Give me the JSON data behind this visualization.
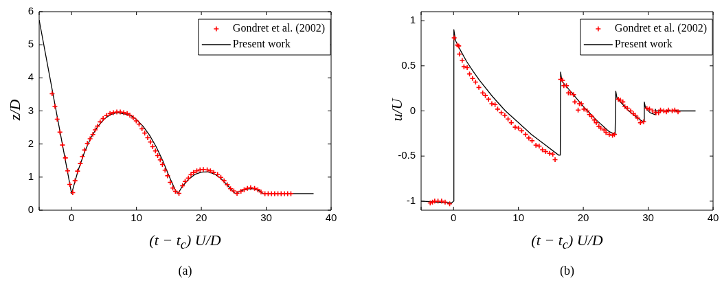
{
  "chart_data": [
    {
      "type": "line",
      "xlabel": "(t − t$_{c}$) U/D",
      "ylabel": "z/D",
      "annotations": [
        "(a)"
      ],
      "xlim": [
        -5,
        40
      ],
      "ylim": [
        0,
        6
      ],
      "xticks": [
        {
          "value": -5,
          "label": null
        },
        0,
        10,
        20,
        30,
        40
      ],
      "yticks": [
        0,
        1,
        2,
        3,
        4,
        5,
        6
      ],
      "grid": false,
      "legend": "top right",
      "series": [
        {
          "name": "Gondret et al. (2002)",
          "type": "scatter",
          "marker": "cross",
          "color": "#ff0000",
          "x": [
            -3.0,
            -2.57,
            -2.22,
            -1.8,
            -1.41,
            -0.95,
            -0.6,
            -0.28,
            0.18,
            0.53,
            0.92,
            1.34,
            1.65,
            2.0,
            2.43,
            2.85,
            3.27,
            3.63,
            3.98,
            4.4,
            4.86,
            5.39,
            5.92,
            6.44,
            6.97,
            7.5,
            8.03,
            8.56,
            8.98,
            9.5,
            9.96,
            10.4,
            10.85,
            11.27,
            11.73,
            12.15,
            12.5,
            12.92,
            13.27,
            13.66,
            14.0,
            14.4,
            14.8,
            15.2,
            15.6,
            16.0,
            16.55,
            17.1,
            17.5,
            18.0,
            18.4,
            18.8,
            19.3,
            19.8,
            20.3,
            20.9,
            21.4,
            21.9,
            22.5,
            23.0,
            23.5,
            24.0,
            24.5,
            25.0,
            25.5,
            26.1,
            26.6,
            27.1,
            27.6,
            28.2,
            28.7,
            29.2,
            29.8,
            30.3,
            30.8,
            31.3,
            31.8,
            32.3,
            32.8,
            33.3,
            33.8
          ],
          "values": [
            3.52,
            3.14,
            2.75,
            2.36,
            1.97,
            1.58,
            1.19,
            0.78,
            0.53,
            0.89,
            1.18,
            1.41,
            1.62,
            1.82,
            2.02,
            2.16,
            2.29,
            2.43,
            2.54,
            2.67,
            2.77,
            2.86,
            2.92,
            2.95,
            2.97,
            2.97,
            2.95,
            2.92,
            2.87,
            2.79,
            2.7,
            2.6,
            2.46,
            2.33,
            2.19,
            2.06,
            1.92,
            1.79,
            1.65,
            1.52,
            1.38,
            1.21,
            1.04,
            0.84,
            0.67,
            0.57,
            0.51,
            0.74,
            0.87,
            0.97,
            1.08,
            1.14,
            1.19,
            1.22,
            1.23,
            1.22,
            1.19,
            1.14,
            1.08,
            0.99,
            0.89,
            0.77,
            0.65,
            0.58,
            0.51,
            0.57,
            0.62,
            0.66,
            0.68,
            0.66,
            0.62,
            0.55,
            0.5,
            0.5,
            0.5,
            0.5,
            0.5,
            0.5,
            0.5,
            0.5,
            0.5
          ]
        },
        {
          "name": "Present work",
          "type": "line",
          "marker": "none",
          "color": "#000000",
          "x": [
            -5,
            0,
            0.5,
            1,
            2,
            3,
            4,
            5,
            6,
            7,
            9,
            10,
            11,
            12,
            13,
            14,
            15,
            16,
            16.4,
            17,
            18,
            19,
            20,
            21,
            22,
            23,
            24,
            25,
            25.3,
            26,
            27,
            28,
            29,
            29.5,
            37.3
          ],
          "values": [
            5.75,
            0.5,
            0.85,
            1.2,
            1.76,
            2.2,
            2.52,
            2.75,
            2.89,
            2.95,
            2.88,
            2.74,
            2.54,
            2.27,
            1.93,
            1.52,
            1.04,
            0.6,
            0.5,
            0.7,
            0.93,
            1.08,
            1.15,
            1.16,
            1.1,
            0.96,
            0.76,
            0.54,
            0.5,
            0.58,
            0.64,
            0.65,
            0.58,
            0.5,
            0.5
          ]
        }
      ]
    },
    {
      "type": "line",
      "xlabel": "(t − t$_{c}$) U/D",
      "ylabel": "u/U",
      "annotations": [
        "(b)"
      ],
      "xlim": [
        -5,
        40
      ],
      "ylim": [
        -1.1,
        1.1
      ],
      "xticks": [
        {
          "value": -5,
          "label": null
        },
        0,
        10,
        20,
        30,
        40
      ],
      "yticks": [
        -1,
        -0.5,
        0,
        0.5,
        1
      ],
      "grid": false,
      "legend": "top right",
      "series": [
        {
          "name": "Gondret et al. (2002)",
          "type": "scatter",
          "marker": "cross",
          "color": "#ff0000",
          "x": [
            -3.6,
            -3.25,
            -2.9,
            -2.4,
            -1.84,
            -1.3,
            -0.6,
            0.1,
            0.57,
            0.8,
            0.9,
            1.34,
            1.6,
            2.1,
            2.47,
            2.93,
            3.4,
            3.9,
            4.5,
            4.9,
            5.4,
            5.9,
            6.4,
            6.8,
            7.35,
            7.9,
            8.4,
            8.9,
            9.5,
            10.0,
            10.5,
            11.1,
            11.6,
            12.1,
            12.7,
            13.2,
            13.7,
            14.2,
            14.8,
            15.3,
            15.65,
            16.5,
            16.8,
            17.0,
            17.4,
            17.7,
            18.0,
            18.5,
            18.7,
            19.2,
            19.4,
            19.7,
            20.1,
            20.6,
            20.95,
            21.3,
            21.7,
            22.0,
            22.4,
            22.7,
            23.2,
            23.5,
            24.0,
            24.5,
            24.8,
            25.4,
            25.7,
            26.1,
            26.4,
            26.8,
            27.3,
            27.7,
            28.0,
            28.4,
            28.8,
            29.3,
            29.8,
            30.2,
            30.7,
            31.2,
            31.6,
            31.9,
            32.4,
            32.8,
            33.1,
            33.7,
            34.1,
            34.6
          ],
          "values": [
            -1.02,
            -1.01,
            -1.0,
            -1.0,
            -1.0,
            -1.01,
            -1.03,
            0.81,
            0.73,
            0.72,
            0.63,
            0.56,
            0.49,
            0.48,
            0.41,
            0.36,
            0.32,
            0.26,
            0.2,
            0.17,
            0.13,
            0.08,
            0.07,
            0.02,
            -0.02,
            -0.05,
            -0.09,
            -0.13,
            -0.18,
            -0.19,
            -0.22,
            -0.26,
            -0.3,
            -0.33,
            -0.38,
            -0.39,
            -0.43,
            -0.45,
            -0.47,
            -0.48,
            -0.54,
            0.35,
            0.34,
            0.28,
            0.28,
            0.2,
            0.2,
            0.18,
            0.1,
            0.01,
            0.08,
            0.08,
            0.02,
            0.0,
            -0.04,
            -0.06,
            -0.1,
            -0.13,
            -0.17,
            -0.19,
            -0.21,
            -0.24,
            -0.26,
            -0.27,
            -0.26,
            0.13,
            0.12,
            0.1,
            0.05,
            0.03,
            0.0,
            -0.03,
            -0.05,
            -0.08,
            -0.13,
            -0.12,
            0.03,
            0.02,
            0.0,
            -0.02,
            -0.02,
            0.01,
            0.0,
            -0.01,
            0.01,
            0.0,
            0.01,
            -0.01
          ]
        },
        {
          "name": "Present work",
          "type": "line",
          "marker": "none",
          "color": "#000000",
          "x": [
            -5,
            -0.3,
            0,
            0.05,
            0.3,
            1,
            2,
            3,
            4,
            6,
            8,
            10,
            12,
            14,
            16.2,
            16.45,
            16.5,
            16.7,
            18,
            20,
            22,
            24,
            24.9,
            25.0,
            25.2,
            27,
            29,
            29.35,
            29.4,
            29.6,
            30.3,
            31.0,
            31.1,
            31.2,
            37.3
          ],
          "values": [
            -1.0,
            -1.02,
            -1.0,
            0.9,
            0.78,
            0.68,
            0.55,
            0.44,
            0.34,
            0.16,
            0.0,
            -0.13,
            -0.26,
            -0.37,
            -0.49,
            -0.49,
            0.43,
            0.33,
            0.22,
            0.05,
            -0.1,
            -0.23,
            -0.26,
            0.22,
            0.14,
            0.0,
            -0.11,
            -0.12,
            0.1,
            0.03,
            -0.02,
            -0.04,
            0.02,
            0.0,
            0.0
          ]
        }
      ]
    }
  ]
}
